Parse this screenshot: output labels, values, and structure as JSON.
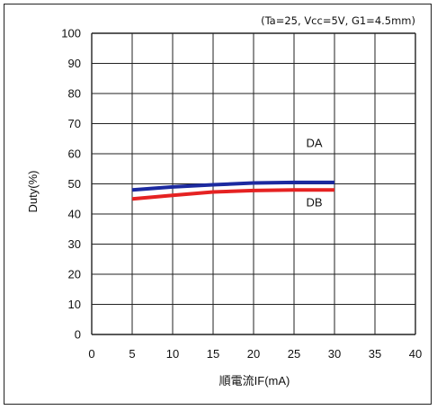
{
  "chart_data": {
    "type": "line",
    "annotation": "(Ta=25, Vcc=5V, G1=4.5mm)",
    "xlabel": "順電流IF(mA)",
    "ylabel": "Duty(%)",
    "xlim": [
      0,
      40
    ],
    "ylim": [
      0,
      100
    ],
    "xticks": [
      0,
      5,
      10,
      15,
      20,
      25,
      30,
      35,
      40
    ],
    "yticks": [
      0,
      10,
      20,
      30,
      40,
      50,
      60,
      70,
      80,
      90,
      100
    ],
    "grid": true,
    "series": [
      {
        "name": "DA",
        "color": "#1c2aa0",
        "x": [
          5,
          10,
          15,
          20,
          25,
          30
        ],
        "y": [
          48,
          49,
          49.7,
          50.3,
          50.5,
          50.5
        ]
      },
      {
        "name": "DB",
        "color": "#e52222",
        "x": [
          5,
          10,
          15,
          20,
          25,
          30
        ],
        "y": [
          45,
          46.2,
          47.3,
          47.8,
          48,
          48
        ]
      }
    ]
  }
}
